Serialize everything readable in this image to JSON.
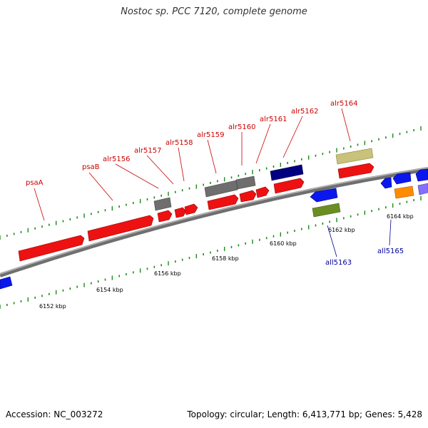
{
  "title": "Nostoc sp. PCC 7120, complete genome",
  "footer": {
    "accession": "Accession: NC_003272",
    "summary": "Topology: circular; Length: 6,413,771 bp; Genes: 5,428"
  },
  "colors": {
    "backbone": "#8a8a8a",
    "forward_label": "#cc0000",
    "reverse_label": "#000099",
    "tick_major": "#1a8a1a",
    "tick_minor": "#1a8a1a"
  },
  "scale_labels": [
    "6152 kbp",
    "6154 kbp",
    "6156 kbp",
    "6158 kbp",
    "6160 kbp",
    "6162 kbp",
    "6164 kbp"
  ],
  "forward_gene_labels": [
    "psaA",
    "psaB",
    "alr5156",
    "alr5157",
    "alr5158",
    "alr5159",
    "alr5160",
    "alr5161",
    "alr5162",
    "alr5164"
  ],
  "reverse_gene_labels": [
    "all5163",
    "all5165"
  ]
}
